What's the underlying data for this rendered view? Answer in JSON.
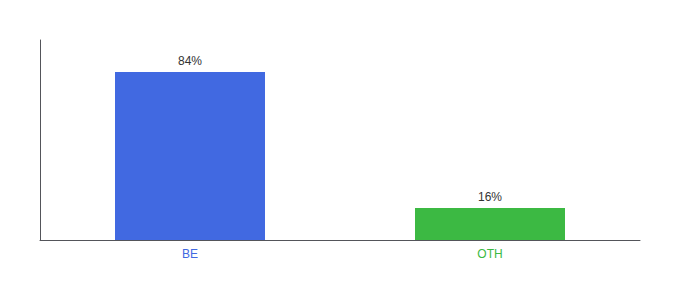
{
  "chart_data": {
    "type": "bar",
    "categories": [
      "BE",
      "OTH"
    ],
    "values": [
      84,
      16
    ],
    "value_labels": [
      "84%",
      "16%"
    ],
    "data_labels": true,
    "colors": [
      "#4169E1",
      "#3CB943"
    ],
    "ylim": [
      0,
      100
    ],
    "grid": false,
    "tick_labels": "x"
  }
}
